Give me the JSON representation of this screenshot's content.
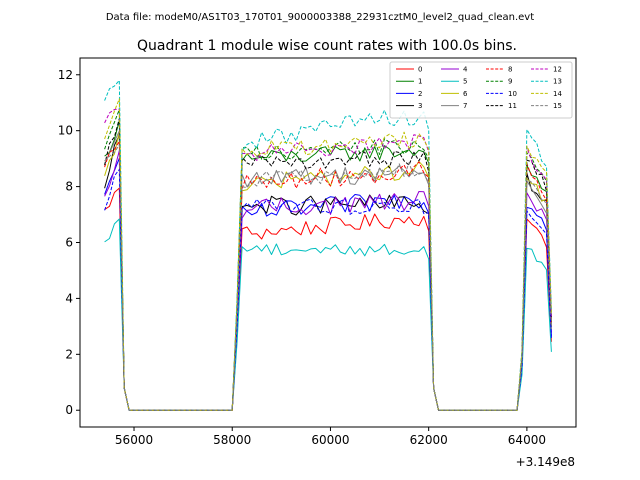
{
  "suptitle": "Data file: modeM0/AS1T03_170T01_9000003388_22931cztM0_level2_quad_clean.evt",
  "chart_data": {
    "type": "line",
    "title": "Quadrant 1 module wise count rates with 100.0s bins.",
    "xlabel": "",
    "ylabel": "",
    "x_offset_label": "+3.149e8",
    "xlim": [
      54900,
      65000
    ],
    "ylim": [
      -0.6,
      12.6
    ],
    "xticks": [
      56000,
      58000,
      60000,
      62000,
      64000
    ],
    "xtick_labels": [
      "56000",
      "58000",
      "60000",
      "62000",
      "64000"
    ],
    "yticks": [
      0,
      2,
      4,
      6,
      8,
      10,
      12
    ],
    "ytick_labels": [
      "0",
      "2",
      "4",
      "6",
      "8",
      "10",
      "12"
    ],
    "legend_position": "top-right",
    "segments": [
      {
        "start": 55400,
        "count": 4
      },
      {
        "start": 58200,
        "count": 38
      },
      {
        "start": 63950,
        "count": 6
      }
    ],
    "series": [
      {
        "name": "0",
        "color": "#ff0000",
        "dash": "solid",
        "base": 7.1,
        "peak1": 8.0,
        "peak3": 6.8,
        "s2a": 6.3,
        "s2b": 6.9,
        "noise": 0.3
      },
      {
        "name": "1",
        "color": "#008000",
        "dash": "solid",
        "base": 9.0,
        "peak1": 10.2,
        "peak3": 8.8,
        "s2a": 9.0,
        "s2b": 9.3,
        "noise": 0.3
      },
      {
        "name": "2",
        "color": "#0000ff",
        "dash": "solid",
        "base": 7.6,
        "peak1": 9.0,
        "peak3": 7.4,
        "s2a": 7.0,
        "s2b": 7.6,
        "noise": 0.35
      },
      {
        "name": "3",
        "color": "#000000",
        "dash": "solid",
        "base": 7.8,
        "peak1": 10.0,
        "peak3": 8.3,
        "s2a": 7.3,
        "s2b": 7.4,
        "noise": 0.35
      },
      {
        "name": "4",
        "color": "#9400d3",
        "dash": "solid",
        "base": 7.5,
        "peak1": 9.2,
        "peak3": 7.7,
        "s2a": 7.2,
        "s2b": 7.5,
        "noise": 0.35
      },
      {
        "name": "5",
        "color": "#00bfbf",
        "dash": "solid",
        "base": 5.9,
        "peak1": 6.9,
        "peak3": 5.8,
        "s2a": 5.8,
        "s2b": 5.7,
        "noise": 0.25
      },
      {
        "name": "6",
        "color": "#bfbf00",
        "dash": "solid",
        "base": 8.2,
        "peak1": 9.8,
        "peak3": 8.4,
        "s2a": 8.1,
        "s2b": 8.6,
        "noise": 0.35
      },
      {
        "name": "7",
        "color": "#808080",
        "dash": "solid",
        "base": 8.6,
        "peak1": 10.0,
        "peak3": 8.0,
        "s2a": 8.3,
        "s2b": 8.5,
        "noise": 0.35
      },
      {
        "name": "8",
        "color": "#ff0000",
        "dash": "dashed",
        "base": 8.9,
        "peak1": 9.8,
        "peak3": 8.7,
        "s2a": 8.1,
        "s2b": 8.6,
        "noise": 0.35
      },
      {
        "name": "9",
        "color": "#008000",
        "dash": "dashed",
        "base": 9.5,
        "peak1": 10.7,
        "peak3": 9.2,
        "s2a": 9.2,
        "s2b": 9.5,
        "noise": 0.3
      },
      {
        "name": "10",
        "color": "#0000ff",
        "dash": "dashed",
        "base": 7.3,
        "peak1": 8.7,
        "peak3": 7.2,
        "s2a": 7.3,
        "s2b": 7.3,
        "noise": 0.3
      },
      {
        "name": "11",
        "color": "#000000",
        "dash": "dashed",
        "base": 8.9,
        "peak1": 10.3,
        "peak3": 9.1,
        "s2a": 8.8,
        "s2b": 9.0,
        "noise": 0.3
      },
      {
        "name": "12",
        "color": "#bf00bf",
        "dash": "dashed",
        "base": 10.4,
        "peak1": 10.8,
        "peak3": 9.3,
        "s2a": 9.2,
        "s2b": 9.6,
        "noise": 0.3
      },
      {
        "name": "13",
        "color": "#00bfbf",
        "dash": "dashed",
        "base": 11.2,
        "peak1": 12.0,
        "peak3": 10.0,
        "s2a": 9.6,
        "s2b": 10.6,
        "noise": 0.35
      },
      {
        "name": "14",
        "color": "#bfbf00",
        "dash": "dashed",
        "base": 9.8,
        "peak1": 11.1,
        "peak3": 9.5,
        "s2a": 9.3,
        "s2b": 9.7,
        "noise": 0.3
      },
      {
        "name": "15",
        "color": "#808080",
        "dash": "dashed",
        "base": 9.0,
        "peak1": 9.6,
        "peak3": 8.4,
        "s2a": 8.2,
        "s2b": 8.6,
        "noise": 0.3
      }
    ]
  }
}
